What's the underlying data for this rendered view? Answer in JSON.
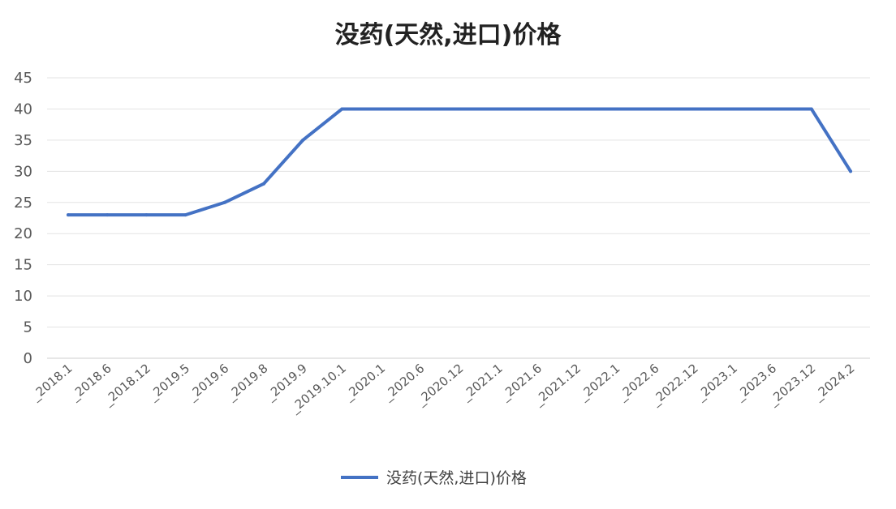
{
  "chart_data": {
    "type": "line",
    "title": "没药(天然,进口)价格",
    "xlabel": "",
    "ylabel": "",
    "categories": [
      "_2018.1",
      "_2018.6",
      "_2018.12",
      "_2019.5",
      "_2019.6",
      "_2019.8",
      "_2019.9",
      "_2019.10.1",
      "_2020.1",
      "_2020.6",
      "_2020.12",
      "_2021.1",
      "_2021.6",
      "_2021.12",
      "_2022.1",
      "_2022.6",
      "_2022.12",
      "_2023.1",
      "_2023.6",
      "_2023.12",
      "_2024.2"
    ],
    "series": [
      {
        "name": "没药(天然,进口)价格",
        "color": "#4472C4",
        "values": [
          23,
          23,
          23,
          23,
          25,
          28,
          35,
          40,
          40,
          40,
          40,
          40,
          40,
          40,
          40,
          40,
          40,
          40,
          40,
          40,
          30
        ]
      }
    ],
    "ylim": [
      0,
      45
    ],
    "yticks": [
      0,
      5,
      10,
      15,
      20,
      25,
      30,
      35,
      40,
      45
    ],
    "grid": true,
    "legend": "bottom"
  }
}
